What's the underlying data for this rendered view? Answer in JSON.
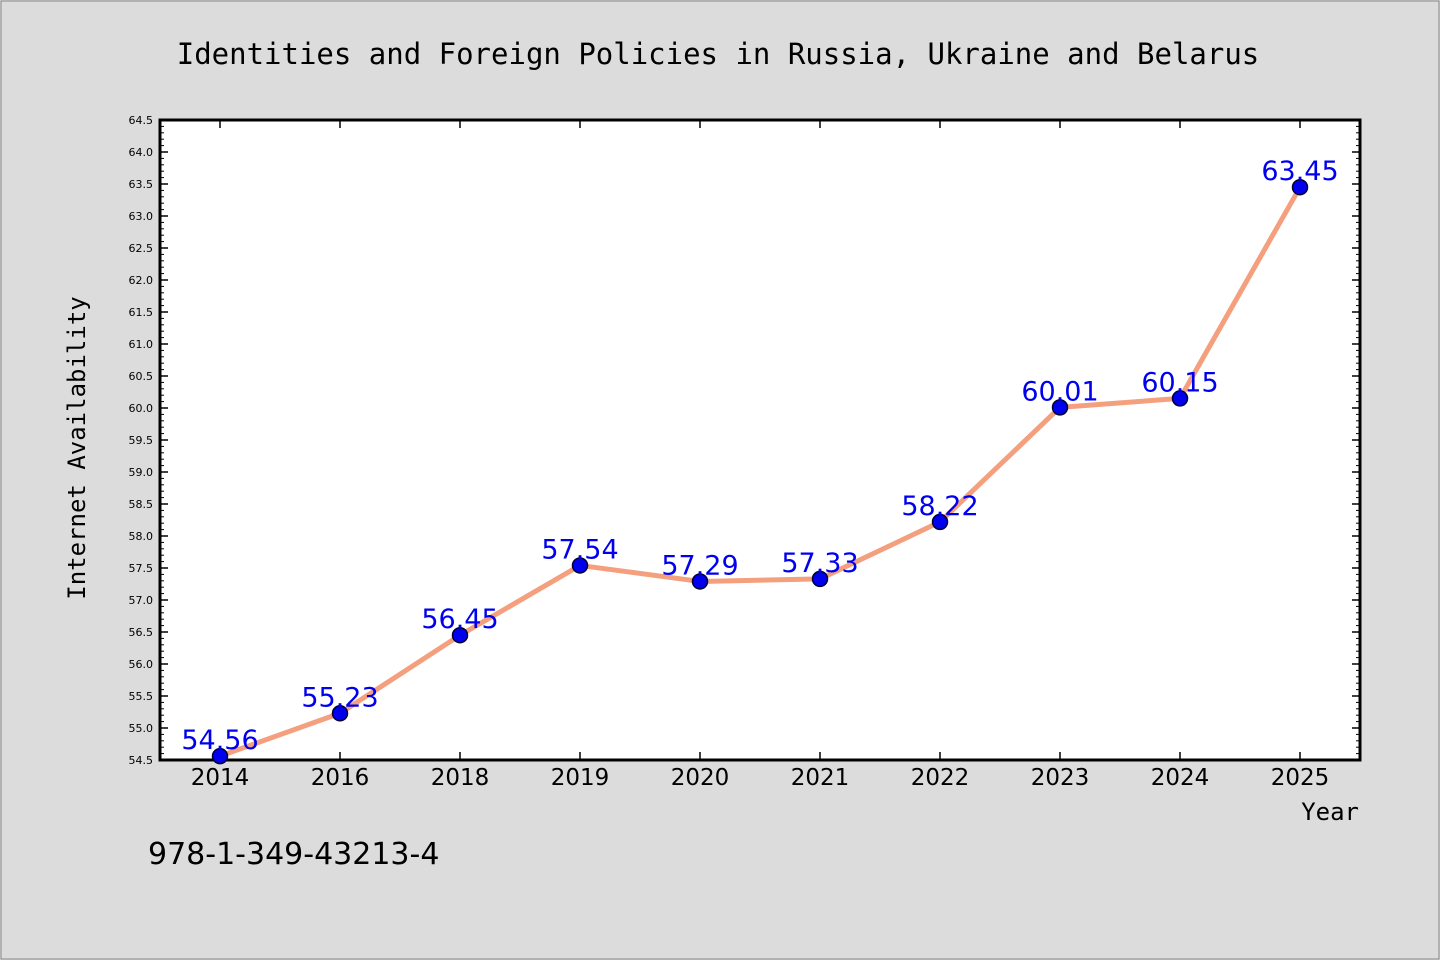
{
  "chart_data": {
    "type": "line",
    "title": "Identities and Foreign Policies in Russia, Ukraine and Belarus",
    "xlabel": "Year",
    "ylabel": "Internet Availability",
    "categories": [
      "2014",
      "2016",
      "2018",
      "2019",
      "2020",
      "2021",
      "2022",
      "2023",
      "2024",
      "2025"
    ],
    "series": [
      {
        "values": [
          54.56,
          55.23,
          56.45,
          57.54,
          57.29,
          57.33,
          58.22,
          60.01,
          60.15,
          63.45
        ],
        "labels": [
          "54.56",
          "55.23",
          "56.45",
          "57.54",
          "57.29",
          "57.33",
          "58.22",
          "60.01",
          "60.15",
          "63.45"
        ]
      }
    ],
    "ylim": [
      54.5,
      64.5
    ],
    "ytick_step": 0.5,
    "grid": false,
    "line_color": "#f4a07e",
    "marker_color": "#0000ee",
    "label_color": "#0000ee"
  },
  "footnote": "978-1-349-43213-4"
}
